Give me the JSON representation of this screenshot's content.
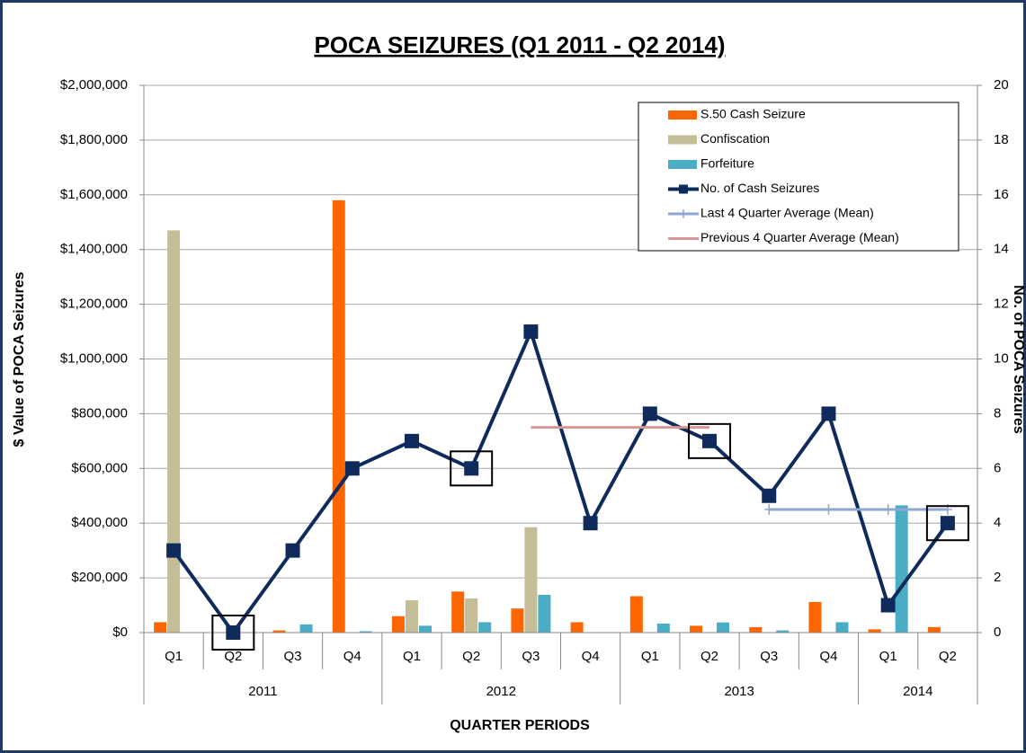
{
  "chart_data": {
    "type": "bar",
    "title": "POCA SEIZURES (Q1 2011 - Q2 2014)",
    "x_label": "QUARTER PERIODS",
    "y_label": "$ Value of POCA Seizures",
    "y2_label": "No. of POCA Seizures",
    "groups": [
      {
        "label": "2011",
        "quarters": [
          "Q1",
          "Q2",
          "Q3",
          "Q4"
        ]
      },
      {
        "label": "2012",
        "quarters": [
          "Q1",
          "Q2",
          "Q3",
          "Q4"
        ]
      },
      {
        "label": "2013",
        "quarters": [
          "Q1",
          "Q2",
          "Q3",
          "Q4"
        ]
      },
      {
        "label": "2014",
        "quarters": [
          "Q1",
          "Q2"
        ]
      }
    ],
    "series": [
      {
        "name": "S.50 Cash Seizure",
        "type": "bar",
        "color": "#ff6600",
        "values": [
          38000,
          0,
          8000,
          1580000,
          60000,
          150000,
          88000,
          38000,
          133000,
          25000,
          20000,
          112000,
          12000,
          20000
        ]
      },
      {
        "name": "Confiscation",
        "type": "bar",
        "color": "#c4bd97",
        "values": [
          1470000,
          0,
          0,
          0,
          118000,
          125000,
          385000,
          0,
          0,
          0,
          0,
          0,
          0,
          0
        ]
      },
      {
        "name": "Forfeiture",
        "type": "bar",
        "color": "#4bacc6",
        "values": [
          0,
          0,
          30000,
          5000,
          25000,
          38000,
          138000,
          0,
          33000,
          37000,
          8000,
          38000,
          465000,
          0
        ]
      },
      {
        "name": "No. of Cash Seizures",
        "type": "line",
        "axis": "y2",
        "color": "#0f2b5b",
        "marker": "square",
        "values": [
          3,
          0,
          3,
          6,
          7,
          6,
          11,
          4,
          8,
          7,
          5,
          8,
          1,
          4
        ]
      },
      {
        "name": "Last 4 Quarter Average (Mean)",
        "type": "line",
        "axis": "y2",
        "color": "#8ea6d4",
        "marker": "plus",
        "values": [
          null,
          null,
          null,
          null,
          null,
          null,
          null,
          null,
          null,
          null,
          4.5,
          4.5,
          4.5,
          4.5
        ]
      },
      {
        "name": "Previous 4 Quarter Average (Mean)",
        "type": "line",
        "axis": "y2",
        "color": "#d99694",
        "marker": "none",
        "values": [
          null,
          null,
          null,
          null,
          null,
          null,
          7.5,
          7.5,
          7.5,
          7.5,
          null,
          null,
          null,
          null
        ]
      }
    ],
    "ylim": [
      0,
      2000000
    ],
    "yticks": [
      {
        "value": 0,
        "label": "$0"
      },
      {
        "value": 200000,
        "label": "$200,000"
      },
      {
        "value": 400000,
        "label": "$400,000"
      },
      {
        "value": 600000,
        "label": "$600,000"
      },
      {
        "value": 800000,
        "label": "$800,000"
      },
      {
        "value": 1000000,
        "label": "$1,000,000"
      },
      {
        "value": 1200000,
        "label": "$1,200,000"
      },
      {
        "value": 1400000,
        "label": "$1,400,000"
      },
      {
        "value": 1600000,
        "label": "$1,600,000"
      },
      {
        "value": 1800000,
        "label": "$1,800,000"
      },
      {
        "value": 2000000,
        "label": "$2,000,000"
      }
    ],
    "y2lim": [
      0,
      20
    ],
    "y2ticks": [
      0,
      2,
      4,
      6,
      8,
      10,
      12,
      14,
      16,
      18,
      20
    ],
    "grid": true,
    "legend": "top-right"
  }
}
